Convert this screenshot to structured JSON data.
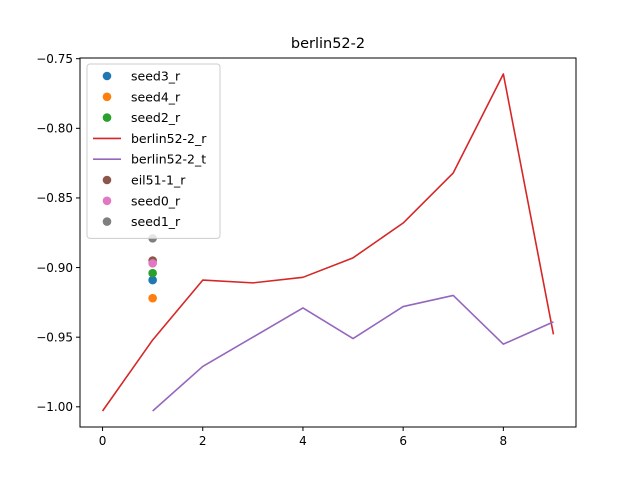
{
  "chart_data": {
    "type": "line",
    "title": "berlin52-2",
    "xlabel": "",
    "ylabel": "",
    "xlim": [
      -0.45,
      9.45
    ],
    "ylim": [
      -1.0145,
      -0.7495
    ],
    "xticks": [
      0,
      2,
      4,
      6,
      8
    ],
    "yticks": [
      -1.0,
      -0.95,
      -0.9,
      -0.85,
      -0.8,
      -0.75
    ],
    "xtick_labels": [
      "0",
      "2",
      "4",
      "6",
      "8"
    ],
    "ytick_labels": [
      "−1.00",
      "−0.95",
      "−0.90",
      "−0.85",
      "−0.80",
      "−0.75"
    ],
    "grid": false,
    "legend_position": "upper-left",
    "series": [
      {
        "name": "seed3_r",
        "kind": "scatter",
        "color": "#1f77b4",
        "x": [
          1
        ],
        "y": [
          -0.909
        ]
      },
      {
        "name": "seed4_r",
        "kind": "scatter",
        "color": "#ff7f0e",
        "x": [
          1
        ],
        "y": [
          -0.922
        ]
      },
      {
        "name": "seed2_r",
        "kind": "scatter",
        "color": "#2ca02c",
        "x": [
          1
        ],
        "y": [
          -0.904
        ]
      },
      {
        "name": "berlin52-2_r",
        "kind": "line",
        "color": "#d62728",
        "x": [
          0,
          1,
          2,
          3,
          4,
          5,
          6,
          7,
          8,
          9
        ],
        "y": [
          -1.003,
          -0.952,
          -0.909,
          -0.911,
          -0.907,
          -0.893,
          -0.868,
          -0.832,
          -0.761,
          -0.948
        ]
      },
      {
        "name": "berlin52-2_t",
        "kind": "line",
        "color": "#9467bd",
        "x": [
          1,
          2,
          3,
          4,
          5,
          6,
          7,
          8,
          9
        ],
        "y": [
          -1.003,
          -0.971,
          -0.95,
          -0.929,
          -0.951,
          -0.928,
          -0.92,
          -0.955,
          -0.939
        ]
      },
      {
        "name": "eil51-1_r",
        "kind": "scatter",
        "color": "#8c564b",
        "x": [
          1
        ],
        "y": [
          -0.895
        ]
      },
      {
        "name": "seed0_r",
        "kind": "scatter",
        "color": "#e377c2",
        "x": [
          1
        ],
        "y": [
          -0.897
        ]
      },
      {
        "name": "seed1_r",
        "kind": "scatter",
        "color": "#7f7f7f",
        "x": [
          1
        ],
        "y": [
          -0.879
        ]
      }
    ]
  }
}
